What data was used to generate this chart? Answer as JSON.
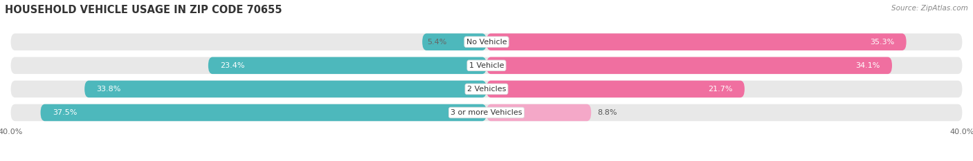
{
  "title": "HOUSEHOLD VEHICLE USAGE IN ZIP CODE 70655",
  "source": "Source: ZipAtlas.com",
  "categories": [
    "No Vehicle",
    "1 Vehicle",
    "2 Vehicles",
    "3 or more Vehicles"
  ],
  "owner_values": [
    5.4,
    23.4,
    33.8,
    37.5
  ],
  "renter_values": [
    35.3,
    34.1,
    21.7,
    8.8
  ],
  "owner_color": "#4db8bc",
  "renter_color": "#f06fa0",
  "renter_color_light": "#f4a8c8",
  "bar_bg_color": "#e8e8e8",
  "axis_max": 40.0,
  "bg_color": "#ffffff",
  "title_fontsize": 10.5,
  "source_fontsize": 7.5,
  "label_fontsize": 8,
  "tick_fontsize": 8,
  "category_fontsize": 8
}
